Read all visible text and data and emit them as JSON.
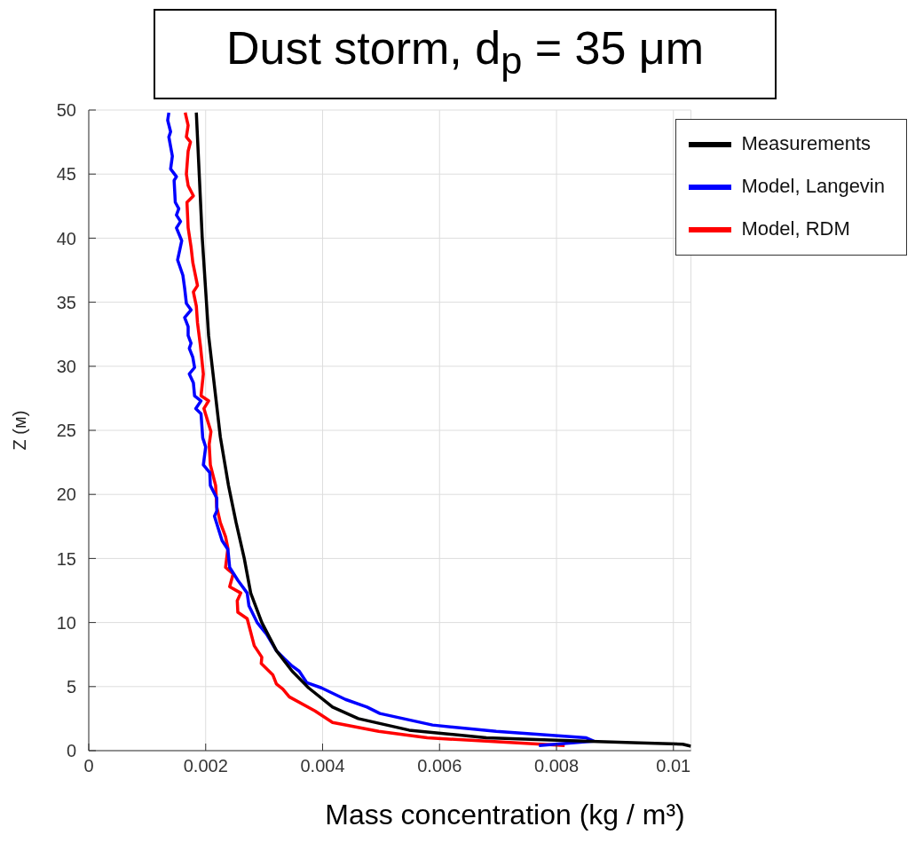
{
  "chart_data": {
    "type": "line",
    "title": "Dust storm, d$_{p}$ = 35 μm",
    "xlabel": "Mass concentration (kg / m³)",
    "ylabel": "Z (м)",
    "xlim": [
      0,
      0.0103
    ],
    "xticks": [
      0,
      0.002,
      0.004,
      0.006,
      0.008,
      0.01
    ],
    "ylim": [
      0,
      50
    ],
    "yticks": [
      0,
      5,
      10,
      15,
      20,
      25,
      30,
      35,
      40,
      45,
      50
    ],
    "grid": true,
    "legend": "top right",
    "marker": "none",
    "line_style": "solid",
    "series": [
      {
        "name": "Model, RDM",
        "color": "#ff0000",
        "x": [
          0.00165,
          0.0017,
          0.00167,
          0.00174,
          0.0017,
          0.00167,
          0.0017,
          0.00179,
          0.00168,
          0.0017,
          0.00175,
          0.00178,
          0.00186,
          0.00179,
          0.00184,
          0.00186,
          0.00191,
          0.00196,
          0.00192,
          0.00205,
          0.00197,
          0.00209,
          0.00206,
          0.00208,
          0.00217,
          0.00219,
          0.00225,
          0.00234,
          0.00238,
          0.00234,
          0.00247,
          0.00241,
          0.0026,
          0.00254,
          0.00255,
          0.00271,
          0.00283,
          0.00296,
          0.00295,
          0.00315,
          0.00321,
          0.00332,
          0.00343,
          0.00387,
          0.00417,
          0.00496,
          0.00579,
          0.0068,
          0.00814
        ],
        "values": [
          49.8,
          48.8,
          47.9,
          47.5,
          46.8,
          45,
          44.1,
          43.3,
          42.8,
          40.8,
          39.3,
          38.1,
          36.3,
          35.8,
          34.7,
          33.4,
          31.6,
          29.4,
          27.7,
          27.3,
          26.7,
          24.9,
          23.9,
          22.3,
          20.7,
          19,
          17.8,
          16.7,
          15.8,
          14.3,
          13.8,
          12.8,
          12.3,
          11.7,
          10.8,
          10.3,
          8.2,
          7.3,
          6.8,
          5.9,
          5.2,
          4.8,
          4.2,
          3.1,
          2.2,
          1.5,
          1.0,
          0.74,
          0.4
        ]
      },
      {
        "name": "Model, Langevin",
        "color": "#0000ff",
        "x": [
          0.00137,
          0.00135,
          0.0014,
          0.00137,
          0.00143,
          0.0014,
          0.0015,
          0.00146,
          0.00148,
          0.00154,
          0.0015,
          0.00157,
          0.0015,
          0.00159,
          0.00152,
          0.00161,
          0.00164,
          0.00167,
          0.00175,
          0.00164,
          0.0017,
          0.0017,
          0.00175,
          0.00172,
          0.00178,
          0.00181,
          0.00172,
          0.00179,
          0.00181,
          0.00192,
          0.00183,
          0.00192,
          0.00195,
          0.002,
          0.00196,
          0.00207,
          0.00208,
          0.00219,
          0.00219,
          0.00215,
          0.00228,
          0.00238,
          0.00241,
          0.00255,
          0.00271,
          0.00274,
          0.00288,
          0.00304,
          0.00321,
          0.00334,
          0.00348,
          0.0036,
          0.00373,
          0.00398,
          0.00439,
          0.00476,
          0.00498,
          0.00588,
          0.00697,
          0.00851,
          0.00864,
          0.0077
        ],
        "values": [
          49.8,
          49.2,
          48.3,
          47.9,
          46.4,
          45.4,
          44.8,
          44.5,
          42.8,
          42.3,
          41.8,
          41.3,
          40.8,
          39.8,
          38.3,
          37.1,
          36.1,
          34.9,
          34.4,
          33.8,
          33.1,
          32.4,
          31.8,
          31.4,
          30.7,
          29.9,
          29.4,
          28.7,
          27.7,
          27.3,
          26.7,
          26.3,
          24.4,
          23.7,
          22.3,
          21.7,
          20.7,
          19.7,
          18.7,
          18.3,
          16.4,
          15.7,
          14.3,
          13.3,
          12.3,
          11.3,
          10,
          9.1,
          7.8,
          7.2,
          6.6,
          6.2,
          5.3,
          4.9,
          4.0,
          3.4,
          2.9,
          2.0,
          1.5,
          1.0,
          0.74,
          0.4
        ]
      },
      {
        "name": "Measurements",
        "color": "#000000",
        "x": [
          0.00184,
          0.00194,
          0.00205,
          0.00225,
          0.00239,
          0.00252,
          0.00266,
          0.00277,
          0.00296,
          0.00321,
          0.00348,
          0.00376,
          0.00417,
          0.00461,
          0.00548,
          0.0068,
          0.00811,
          0.00943,
          0.01016,
          0.0103
        ],
        "values": [
          49.8,
          40.1,
          32.4,
          24.5,
          20.7,
          17.8,
          15,
          12.3,
          10,
          7.8,
          6.2,
          4.9,
          3.4,
          2.5,
          1.6,
          1.0,
          0.8,
          0.6,
          0.5,
          0.35
        ]
      }
    ]
  }
}
